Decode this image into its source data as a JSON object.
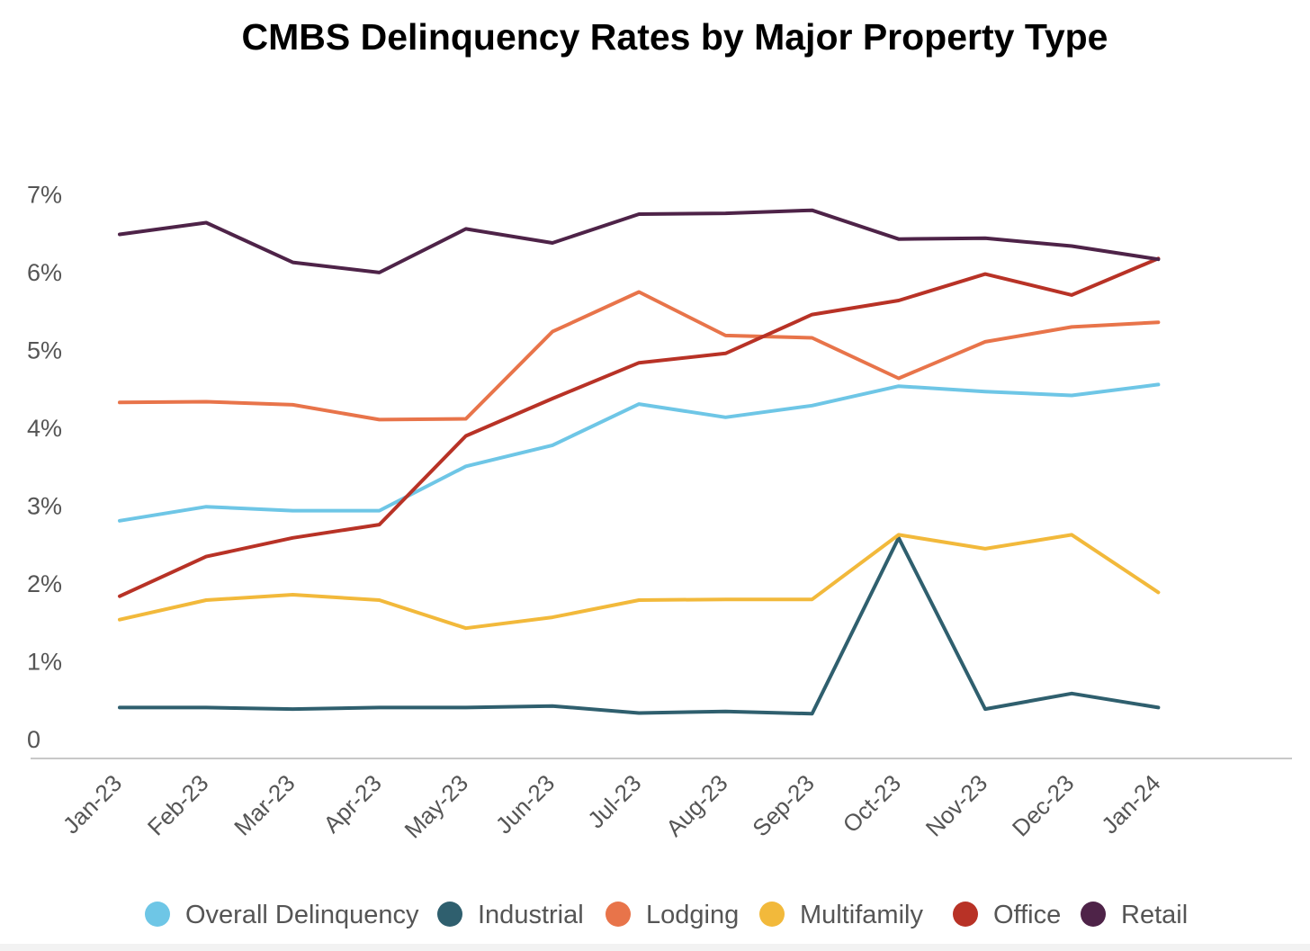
{
  "chart_data": {
    "type": "line",
    "title": "CMBS Delinquency Rates by Major Property Type",
    "xlabel": "",
    "ylabel": "",
    "ylim": [
      0,
      7
    ],
    "yticks": [
      {
        "value": 0,
        "label": "0"
      },
      {
        "value": 1,
        "label": "1%"
      },
      {
        "value": 2,
        "label": "2%"
      },
      {
        "value": 3,
        "label": "3%"
      },
      {
        "value": 4,
        "label": "4%"
      },
      {
        "value": 5,
        "label": "5%"
      },
      {
        "value": 6,
        "label": "6%"
      },
      {
        "value": 7,
        "label": "7%"
      }
    ],
    "categories": [
      "Jan-23",
      "Feb-23",
      "Mar-23",
      "Apr-23",
      "May-23",
      "Jun-23",
      "Jul-23",
      "Aug-23",
      "Sep-23",
      "Oct-23",
      "Nov-23",
      "Dec-23",
      "Jan-24"
    ],
    "grid": false,
    "legend_position": "bottom",
    "series": [
      {
        "name": "Overall Delinquency",
        "key": "overall",
        "color": "#6ec6e6",
        "values": [
          2.8,
          2.98,
          2.93,
          2.93,
          3.5,
          3.77,
          4.3,
          4.13,
          4.28,
          4.53,
          4.46,
          4.41,
          4.55
        ]
      },
      {
        "name": "Industrial",
        "key": "industrial",
        "color": "#2f5f6e",
        "values": [
          0.4,
          0.4,
          0.38,
          0.4,
          0.4,
          0.42,
          0.33,
          0.35,
          0.32,
          2.58,
          0.38,
          0.58,
          0.4
        ]
      },
      {
        "name": "Lodging",
        "key": "lodging",
        "color": "#e8744a",
        "values": [
          4.32,
          4.33,
          4.29,
          4.1,
          4.11,
          5.23,
          5.74,
          5.18,
          5.15,
          4.63,
          5.1,
          5.29,
          5.35
        ]
      },
      {
        "name": "Multifamily",
        "key": "multifamily",
        "color": "#f2b93b",
        "values": [
          1.53,
          1.78,
          1.85,
          1.78,
          1.42,
          1.56,
          1.78,
          1.79,
          1.79,
          2.62,
          2.44,
          2.62,
          1.88
        ]
      },
      {
        "name": "Office",
        "key": "office",
        "color": "#b83226",
        "values": [
          1.83,
          2.34,
          2.58,
          2.75,
          3.89,
          4.37,
          4.83,
          4.95,
          5.45,
          5.63,
          5.97,
          5.7,
          6.17
        ]
      },
      {
        "name": "Retail",
        "key": "retail",
        "color": "#4e2348",
        "values": [
          6.48,
          6.63,
          6.12,
          5.99,
          6.55,
          6.37,
          6.74,
          6.75,
          6.79,
          6.42,
          6.43,
          6.33,
          6.16
        ]
      }
    ]
  }
}
